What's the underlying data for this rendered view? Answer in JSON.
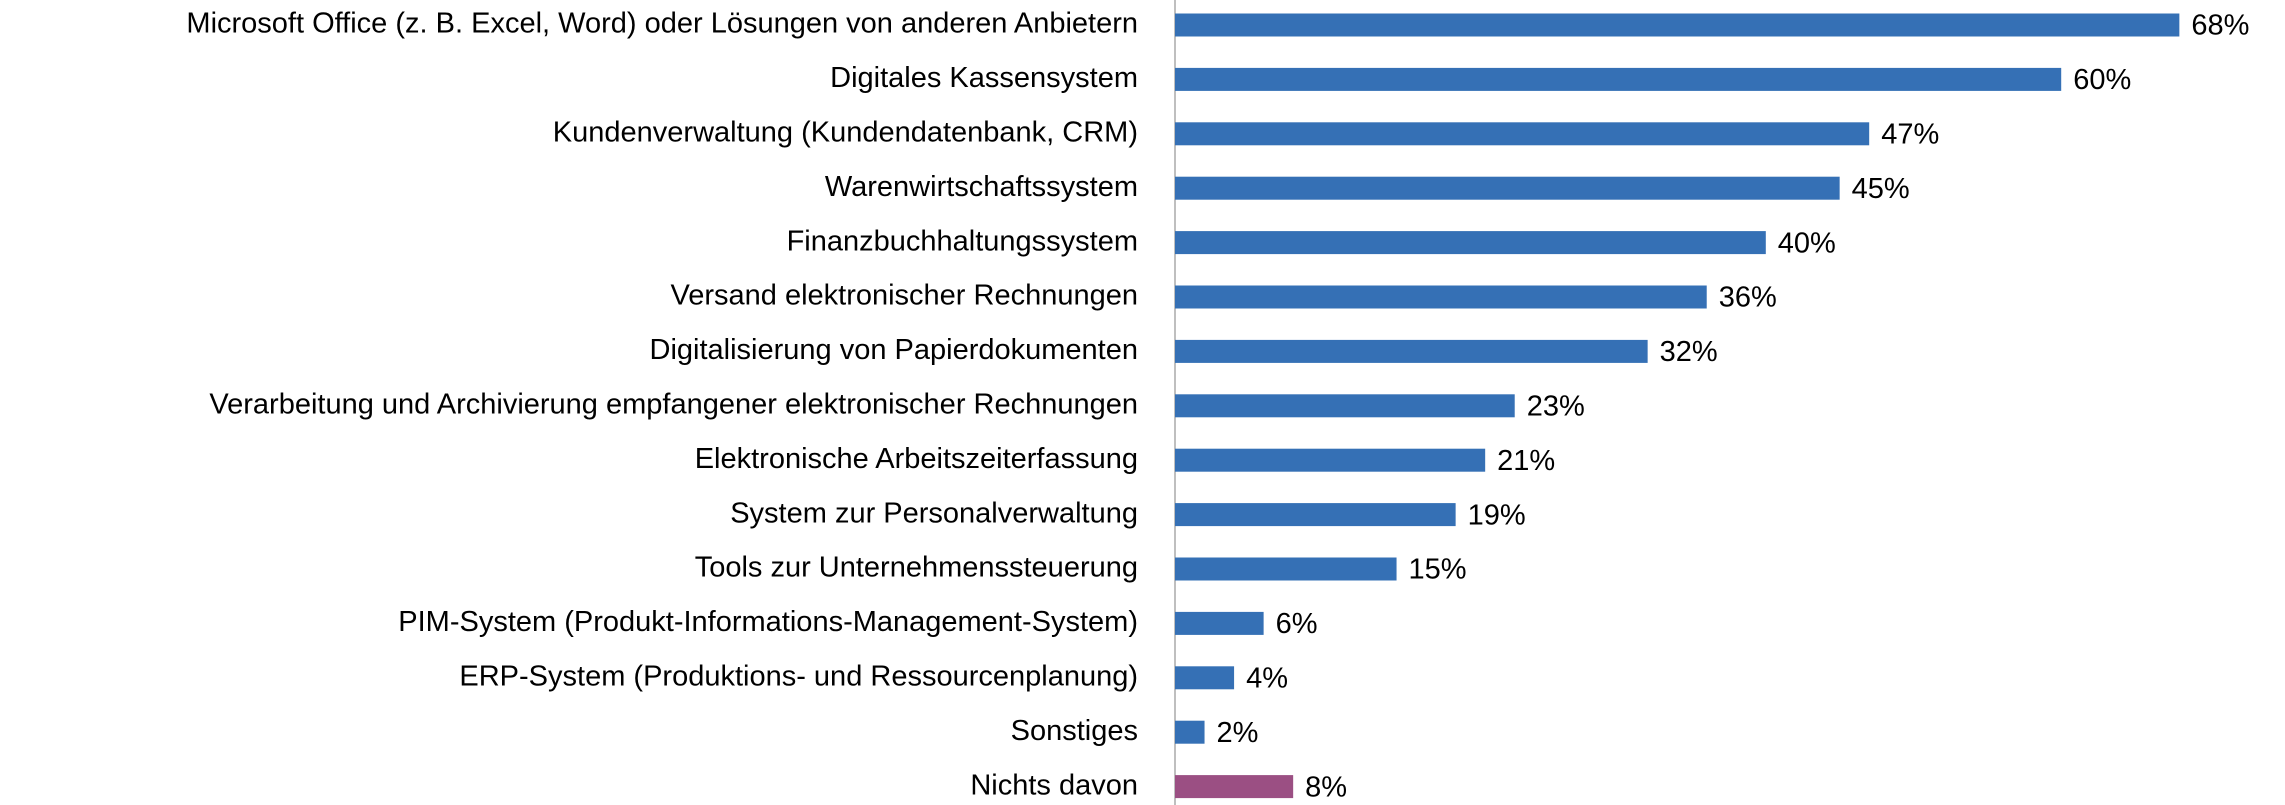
{
  "chart_data": {
    "type": "bar",
    "orientation": "horizontal",
    "categories": [
      "Microsoft Office (z. B. Excel, Word) oder Lösungen von anderen Anbietern",
      "Digitales Kassensystem",
      "Kundenverwaltung (Kundendatenbank, CRM)",
      "Warenwirtschaftssystem",
      "Finanzbuchhaltungssystem",
      "Versand elektronischer Rechnungen",
      "Digitalisierung von Papierdokumenten",
      "Verarbeitung und Archivierung empfangener elektronischer Rechnungen",
      "Elektronische Arbeitszeiterfassung",
      "System zur Personalverwaltung",
      "Tools zur Unternehmenssteuerung",
      "PIM-System (Produkt-Informations-Management-System)",
      "ERP-System (Produktions- und Ressourcenplanung)",
      "Sonstiges",
      "Nichts davon"
    ],
    "values": [
      68,
      60,
      47,
      45,
      40,
      36,
      32,
      23,
      21,
      19,
      15,
      6,
      4,
      2,
      8
    ],
    "value_labels": [
      "68%",
      "60%",
      "47%",
      "45%",
      "40%",
      "36%",
      "32%",
      "23%",
      "21%",
      "19%",
      "15%",
      "6%",
      "4%",
      "2%",
      "8%"
    ],
    "colors": [
      "#3570b5",
      "#3570b5",
      "#3570b5",
      "#3570b5",
      "#3570b5",
      "#3570b5",
      "#3570b5",
      "#3570b5",
      "#3570b5",
      "#3570b5",
      "#3570b5",
      "#3570b5",
      "#3570b5",
      "#3570b5",
      "#9b4f83"
    ]
  }
}
